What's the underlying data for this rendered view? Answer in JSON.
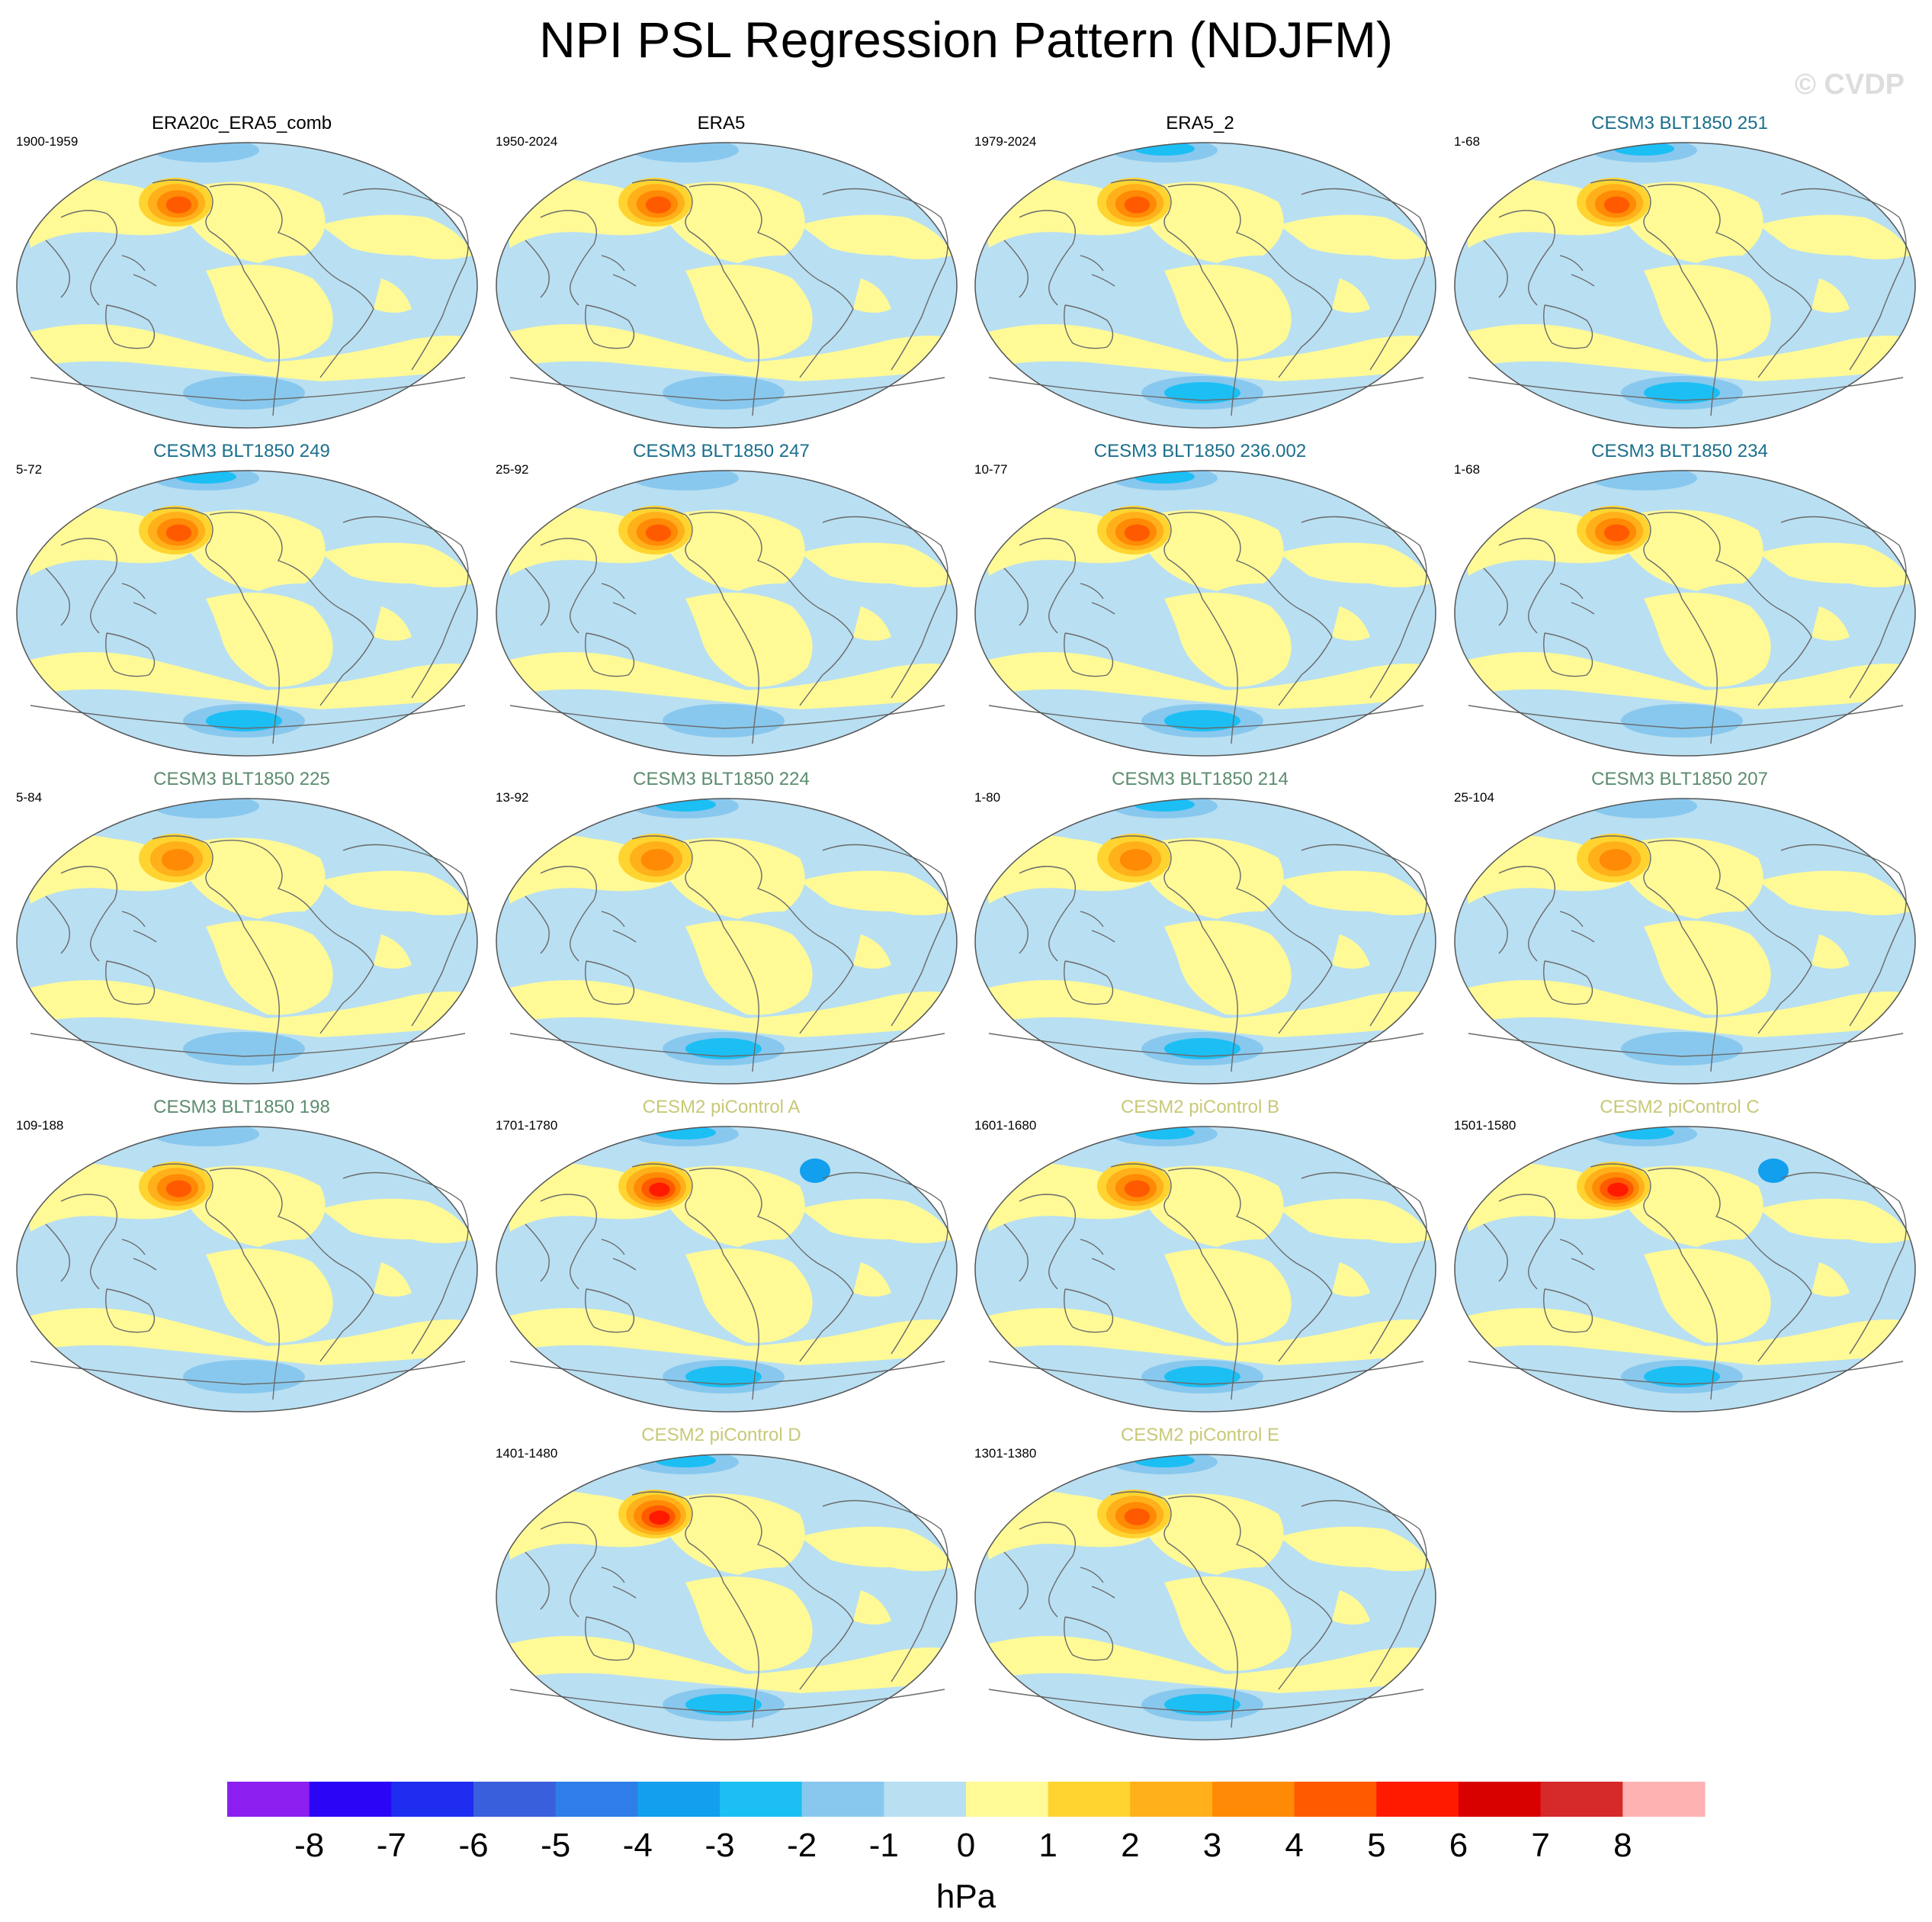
{
  "title": "NPI PSL Regression Pattern (NDJFM)",
  "watermark": "© CVDP",
  "units": "hPa",
  "chart_data": {
    "type": "heatmap",
    "projection": "Robinson (global, Pacific-centered)",
    "variable": "PSL regression onto NPI",
    "season": "NDJFM",
    "colorbar": {
      "ticks": [
        -8,
        -7,
        -6,
        -5,
        -4,
        -3,
        -2,
        -1,
        0,
        1,
        2,
        3,
        4,
        5,
        6,
        7,
        8
      ],
      "colors": [
        "#8c1ff0",
        "#2b05f5",
        "#1e2df0",
        "#3a5fdc",
        "#2e7de8",
        "#119fee",
        "#1cbff4",
        "#88c8ee",
        "#b9dff2",
        "#fffa96",
        "#ffd430",
        "#ffb01a",
        "#ff8a05",
        "#ff5a00",
        "#ff1a00",
        "#d90000",
        "#d62a2a",
        "#ffb2b2"
      ],
      "units": "hPa"
    },
    "panels": [
      {
        "title": "ERA20c_ERA5_comb",
        "years": "1900-1959",
        "title_color": "#000000",
        "max_hPa": 4.4,
        "neg_strength": 1
      },
      {
        "title": "ERA5",
        "years": "1950-2024",
        "title_color": "#000000",
        "max_hPa": 4.2,
        "neg_strength": 1
      },
      {
        "title": "ERA5_2",
        "years": "1979-2024",
        "title_color": "#000000",
        "max_hPa": 4.1,
        "neg_strength": 2
      },
      {
        "title": "CESM3 BLT1850 251",
        "years": "1-68",
        "title_color": "#1a6e8c",
        "max_hPa": 4.3,
        "neg_strength": 2
      },
      {
        "title": "CESM3 BLT1850 249",
        "years": "5-72",
        "title_color": "#1a6e8c",
        "max_hPa": 4.6,
        "neg_strength": 2
      },
      {
        "title": "CESM3 BLT1850 247",
        "years": "25-92",
        "title_color": "#1a6e8c",
        "max_hPa": 4.2,
        "neg_strength": 1
      },
      {
        "title": "CESM3 BLT1850 236.002",
        "years": "10-77",
        "title_color": "#1a6e8c",
        "max_hPa": 4.2,
        "neg_strength": 2
      },
      {
        "title": "CESM3 BLT1850 234",
        "years": "1-68",
        "title_color": "#1a6e8c",
        "max_hPa": 4.2,
        "neg_strength": 1
      },
      {
        "title": "CESM3 BLT1850 225",
        "years": "5-84",
        "title_color": "#5c8c6e",
        "max_hPa": 3.6,
        "neg_strength": 1
      },
      {
        "title": "CESM3 BLT1850 224",
        "years": "13-92",
        "title_color": "#5c8c6e",
        "max_hPa": 3.7,
        "neg_strength": 2
      },
      {
        "title": "CESM3 BLT1850 214",
        "years": "1-80",
        "title_color": "#5c8c6e",
        "max_hPa": 3.4,
        "neg_strength": 2
      },
      {
        "title": "CESM3 BLT1850 207",
        "years": "25-104",
        "title_color": "#5c8c6e",
        "max_hPa": 3.4,
        "neg_strength": 1
      },
      {
        "title": "CESM3 BLT1850 198",
        "years": "109-188",
        "title_color": "#5c8c6e",
        "max_hPa": 4.6,
        "neg_strength": 1
      },
      {
        "title": "CESM2 piControl A",
        "years": "1701-1780",
        "title_color": "#c8c878",
        "max_hPa": 5.6,
        "neg_strength": 3
      },
      {
        "title": "CESM2 piControl B",
        "years": "1601-1680",
        "title_color": "#c8c878",
        "max_hPa": 4.7,
        "neg_strength": 2
      },
      {
        "title": "CESM2 piControl C",
        "years": "1501-1580",
        "title_color": "#c8c878",
        "max_hPa": 5.4,
        "neg_strength": 3
      },
      {
        "title": "CESM2 piControl D",
        "years": "1401-1480",
        "title_color": "#c8c878",
        "max_hPa": 5.3,
        "neg_strength": 2
      },
      {
        "title": "CESM2 piControl E",
        "years": "1301-1380",
        "title_color": "#c8c878",
        "max_hPa": 4.3,
        "neg_strength": 2
      }
    ]
  }
}
